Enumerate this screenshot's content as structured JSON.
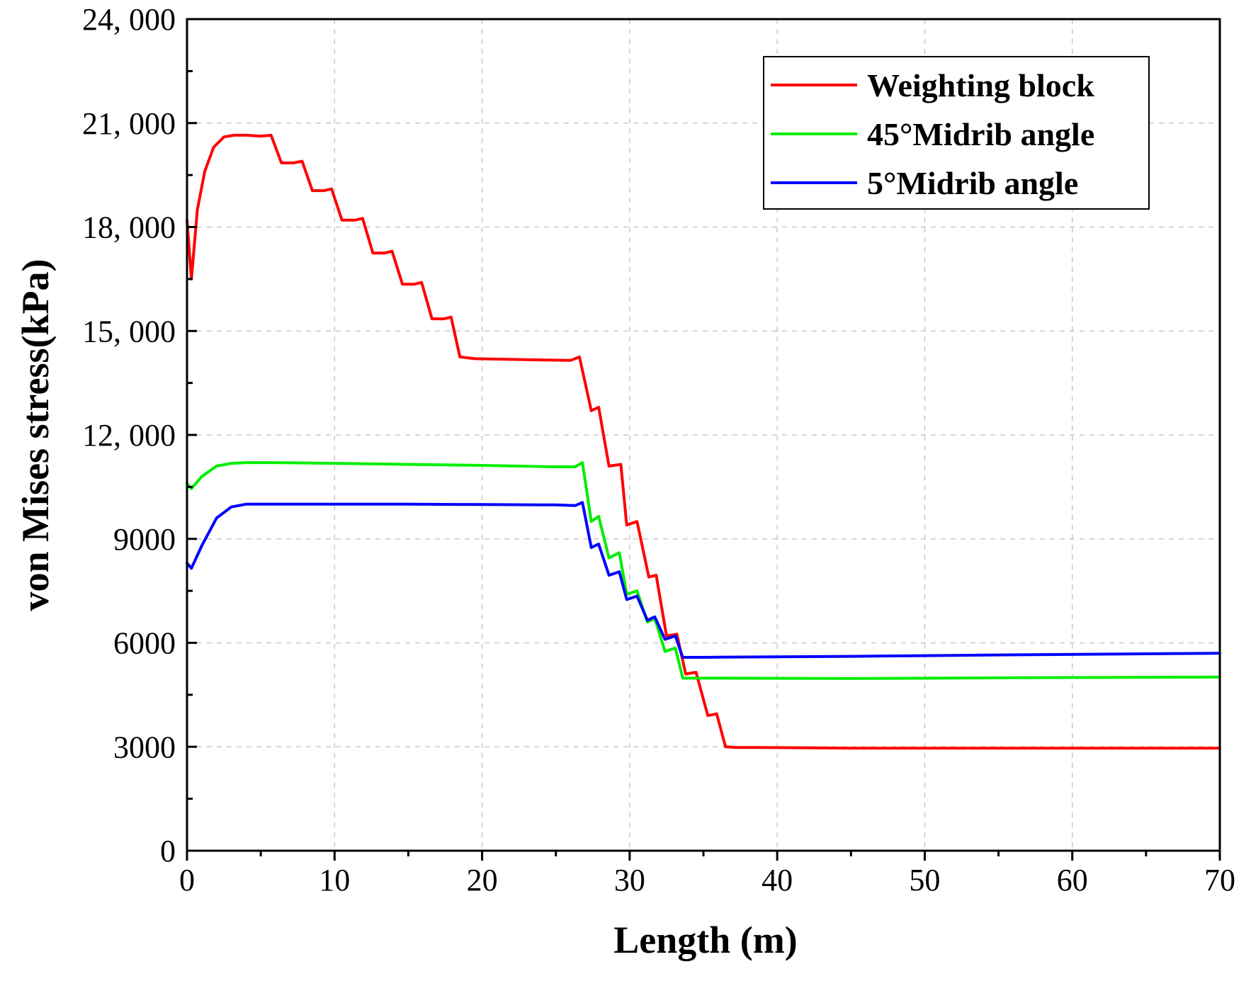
{
  "chart_data": {
    "type": "line",
    "title": "",
    "xlabel": "Length (m)",
    "ylabel": "von Mises stress(kPa)",
    "xlim": [
      0,
      70
    ],
    "ylim": [
      0,
      24000
    ],
    "xticks": [
      0,
      10,
      20,
      30,
      40,
      50,
      60,
      70
    ],
    "xtick_labels": [
      "0",
      "10",
      "20",
      "30",
      "40",
      "50",
      "60",
      "70"
    ],
    "yticks": [
      0,
      3000,
      6000,
      9000,
      12000,
      15000,
      18000,
      21000,
      24000
    ],
    "ytick_labels": [
      "0",
      "3000",
      "6000",
      "9000",
      "12, 000",
      "15, 000",
      "18, 000",
      "21, 000",
      "24, 000"
    ],
    "grid": true,
    "legend_position": "top-right",
    "series": [
      {
        "name": "Weighting block",
        "color": "#ff0000",
        "x": [
          0,
          0.3,
          0.7,
          1.2,
          1.8,
          2.5,
          3.2,
          4,
          5,
          5.7,
          6.4,
          7.2,
          7.8,
          8.5,
          9.3,
          9.8,
          10.5,
          11.4,
          11.9,
          12.6,
          13.4,
          13.9,
          14.6,
          15.4,
          15.9,
          16.6,
          17.4,
          17.9,
          18.5,
          19.5,
          22,
          26,
          26.6,
          27.4,
          27.9,
          28.6,
          29.4,
          29.8,
          30.5,
          31.3,
          31.8,
          32.5,
          33.2,
          33.8,
          34.5,
          35.3,
          35.9,
          36.5,
          37.2,
          37.9,
          38.5,
          45,
          55,
          70
        ],
        "y": [
          18200,
          16500,
          18500,
          19600,
          20300,
          20600,
          20650,
          20650,
          20620,
          20650,
          19850,
          19850,
          19900,
          19050,
          19050,
          19100,
          18200,
          18200,
          18250,
          17250,
          17250,
          17300,
          16350,
          16350,
          16400,
          15350,
          15350,
          15400,
          14250,
          14200,
          14180,
          14150,
          14250,
          12700,
          12800,
          11100,
          11150,
          9400,
          9500,
          7900,
          7950,
          6200,
          6250,
          5100,
          5150,
          3900,
          3950,
          3000,
          2980,
          2980,
          2980,
          2960,
          2960,
          2960
        ]
      },
      {
        "name": "45°Midrib angle",
        "color": "#00ee00",
        "x": [
          0,
          0.3,
          1,
          2,
          3,
          4,
          6,
          10,
          15,
          20,
          25,
          26.3,
          26.8,
          27.4,
          27.9,
          28.6,
          29.3,
          29.8,
          30.5,
          31.2,
          31.7,
          32.4,
          33.1,
          33.6,
          34.3,
          35,
          36,
          45,
          55,
          70
        ],
        "y": [
          10600,
          10450,
          10800,
          11100,
          11180,
          11200,
          11200,
          11180,
          11150,
          11120,
          11080,
          11080,
          11200,
          9500,
          9650,
          8450,
          8600,
          7400,
          7500,
          6600,
          6700,
          5750,
          5850,
          4980,
          4980,
          4980,
          4980,
          4970,
          4990,
          5010
        ]
      },
      {
        "name": "5°Midrib angle",
        "color": "#0000ff",
        "x": [
          0,
          0.3,
          1,
          2,
          3,
          4,
          6,
          10,
          15,
          20,
          25,
          26.3,
          26.8,
          27.4,
          27.9,
          28.6,
          29.3,
          29.8,
          30.5,
          31.2,
          31.7,
          32.4,
          33.1,
          33.6,
          34.3,
          35,
          37,
          45,
          55,
          70
        ],
        "y": [
          8300,
          8150,
          8800,
          9600,
          9920,
          10000,
          10000,
          10000,
          10000,
          9990,
          9980,
          9960,
          10050,
          8750,
          8850,
          7950,
          8050,
          7250,
          7350,
          6650,
          6750,
          6100,
          6200,
          5580,
          5580,
          5580,
          5590,
          5610,
          5650,
          5700
        ]
      }
    ]
  }
}
